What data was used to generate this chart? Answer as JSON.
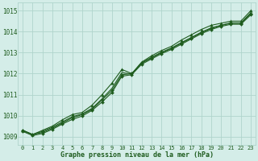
{
  "title": "Graphe pression niveau de la mer (hPa)",
  "background_color": "#d4ede8",
  "grid_color": "#b0d4cc",
  "line_color": "#1e5c1e",
  "xlim_min": -0.5,
  "xlim_max": 23.5,
  "ylim_min": 1008.6,
  "ylim_max": 1015.4,
  "yticks": [
    1009,
    1010,
    1011,
    1012,
    1013,
    1014,
    1015
  ],
  "xticks": [
    0,
    1,
    2,
    3,
    4,
    5,
    6,
    7,
    8,
    9,
    10,
    11,
    12,
    13,
    14,
    15,
    16,
    17,
    18,
    19,
    20,
    21,
    22,
    23
  ],
  "series": [
    {
      "x": [
        0,
        1,
        2,
        3,
        4,
        5,
        6,
        7,
        8,
        9,
        10,
        11,
        12,
        13,
        14,
        15,
        16,
        17,
        18,
        19,
        20,
        21,
        22,
        23
      ],
      "y": [
        1009.3,
        1009.1,
        1009.3,
        1009.5,
        1009.8,
        1010.05,
        1010.15,
        1010.5,
        1011.0,
        1011.55,
        1012.2,
        1012.0,
        1012.55,
        1012.85,
        1013.1,
        1013.3,
        1013.6,
        1013.85,
        1014.1,
        1014.3,
        1014.4,
        1014.5,
        1014.5,
        1015.0
      ],
      "marker": "^",
      "markersize": 2.5,
      "linewidth": 0.8
    },
    {
      "x": [
        0,
        1,
        2,
        3,
        4,
        5,
        6,
        7,
        8,
        9,
        10,
        11,
        12,
        13,
        14,
        15,
        16,
        17,
        18,
        19,
        20,
        21,
        22,
        23
      ],
      "y": [
        1009.3,
        1009.1,
        1009.2,
        1009.4,
        1009.65,
        1009.9,
        1010.05,
        1010.3,
        1010.75,
        1011.2,
        1011.95,
        1012.0,
        1012.5,
        1012.75,
        1013.0,
        1013.2,
        1013.45,
        1013.7,
        1013.95,
        1014.15,
        1014.3,
        1014.4,
        1014.4,
        1014.85
      ],
      "marker": "D",
      "markersize": 2.0,
      "linewidth": 0.8
    },
    {
      "x": [
        0,
        1,
        2,
        3,
        4,
        5,
        6,
        7,
        8,
        9,
        10,
        11,
        12,
        13,
        14,
        15,
        16,
        17,
        18,
        19,
        20,
        21,
        22,
        23
      ],
      "y": [
        1009.25,
        1009.05,
        1009.15,
        1009.35,
        1009.6,
        1009.82,
        1009.98,
        1010.25,
        1010.65,
        1011.1,
        1011.88,
        1011.95,
        1012.45,
        1012.7,
        1012.95,
        1013.15,
        1013.4,
        1013.65,
        1013.9,
        1014.1,
        1014.25,
        1014.35,
        1014.35,
        1014.8
      ],
      "marker": "D",
      "markersize": 2.0,
      "linewidth": 0.8
    },
    {
      "x": [
        0,
        1,
        2,
        3,
        4,
        5,
        6,
        7,
        8,
        9,
        10,
        11,
        12,
        13,
        14,
        15,
        16,
        17,
        18,
        19,
        20,
        21,
        22,
        23
      ],
      "y": [
        1009.3,
        1009.1,
        1009.25,
        1009.45,
        1009.7,
        1009.95,
        1010.08,
        1010.35,
        1010.8,
        1011.3,
        1012.05,
        1011.98,
        1012.52,
        1012.78,
        1013.02,
        1013.22,
        1013.48,
        1013.72,
        1013.97,
        1014.18,
        1014.3,
        1014.42,
        1014.42,
        1014.9
      ],
      "marker": "None",
      "markersize": 0,
      "linewidth": 0.8
    }
  ]
}
